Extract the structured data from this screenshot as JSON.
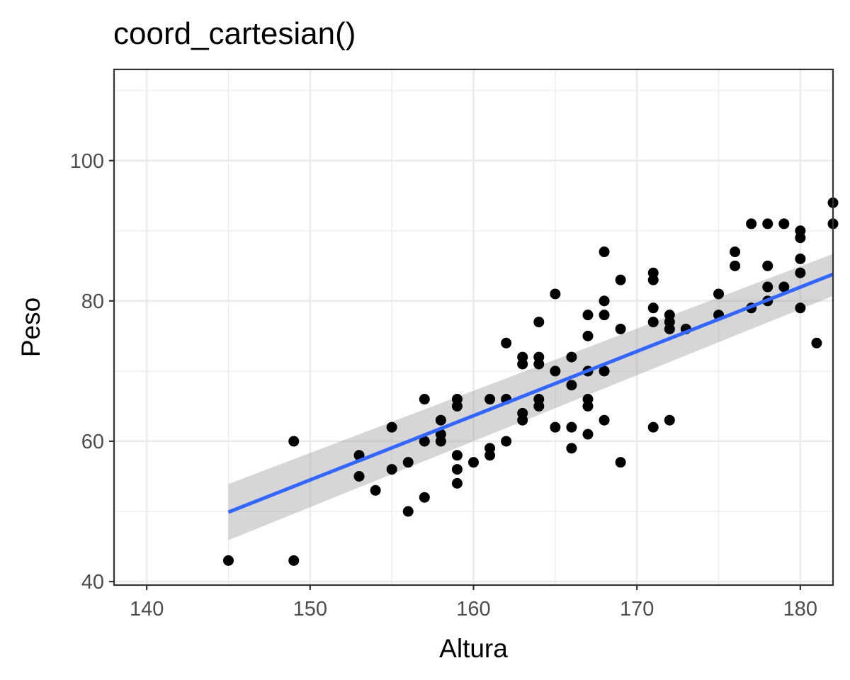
{
  "chart_data": {
    "type": "scatter",
    "title": "coord_cartesian()",
    "xlabel": "Altura",
    "ylabel": "Peso",
    "xlim": [
      138,
      182
    ],
    "ylim": [
      39.5,
      113
    ],
    "x_ticks": [
      140,
      150,
      160,
      170,
      180
    ],
    "y_ticks": [
      40,
      60,
      80,
      100
    ],
    "x_tick_labels": [
      "140",
      "150",
      "160",
      "170",
      "180"
    ],
    "y_tick_labels": [
      "40",
      "60",
      "80",
      "100"
    ],
    "grid": true,
    "legend": "none",
    "colors": {
      "points": "#000000",
      "smooth_line": "#3366ff",
      "confidence_band": "#999999",
      "panel_border": "#333333",
      "grid": "#ebebeb"
    },
    "points": [
      [
        145,
        43
      ],
      [
        149,
        43
      ],
      [
        149,
        60
      ],
      [
        153,
        58
      ],
      [
        153,
        55
      ],
      [
        154,
        53
      ],
      [
        155,
        62
      ],
      [
        155,
        56
      ],
      [
        156,
        57
      ],
      [
        156,
        50
      ],
      [
        157,
        66
      ],
      [
        157,
        60
      ],
      [
        157,
        52
      ],
      [
        158,
        63
      ],
      [
        158,
        61
      ],
      [
        158,
        60
      ],
      [
        159,
        66
      ],
      [
        159,
        65
      ],
      [
        159,
        58
      ],
      [
        159,
        56
      ],
      [
        159,
        54
      ],
      [
        160,
        57
      ],
      [
        161,
        66
      ],
      [
        161,
        59
      ],
      [
        161,
        58
      ],
      [
        162,
        74
      ],
      [
        162,
        66
      ],
      [
        162,
        60
      ],
      [
        163,
        72
      ],
      [
        163,
        71
      ],
      [
        163,
        64
      ],
      [
        163,
        63
      ],
      [
        164,
        77
      ],
      [
        164,
        72
      ],
      [
        164,
        71
      ],
      [
        164,
        66
      ],
      [
        164,
        65
      ],
      [
        165,
        81
      ],
      [
        165,
        70
      ],
      [
        165,
        62
      ],
      [
        166,
        72
      ],
      [
        166,
        68
      ],
      [
        166,
        62
      ],
      [
        166,
        59
      ],
      [
        167,
        78
      ],
      [
        167,
        75
      ],
      [
        167,
        70
      ],
      [
        167,
        66
      ],
      [
        167,
        65
      ],
      [
        167,
        61
      ],
      [
        168,
        87
      ],
      [
        168,
        80
      ],
      [
        168,
        78
      ],
      [
        168,
        70
      ],
      [
        168,
        63
      ],
      [
        169,
        83
      ],
      [
        169,
        76
      ],
      [
        169,
        57
      ],
      [
        171,
        84
      ],
      [
        171,
        83
      ],
      [
        171,
        79
      ],
      [
        171,
        77
      ],
      [
        171,
        62
      ],
      [
        172,
        78
      ],
      [
        172,
        77
      ],
      [
        172,
        76
      ],
      [
        172,
        63
      ],
      [
        173,
        76
      ],
      [
        175,
        81
      ],
      [
        175,
        78
      ],
      [
        176,
        87
      ],
      [
        176,
        85
      ],
      [
        177,
        91
      ],
      [
        177,
        79
      ],
      [
        178,
        91
      ],
      [
        178,
        85
      ],
      [
        178,
        82
      ],
      [
        178,
        80
      ],
      [
        179,
        91
      ],
      [
        179,
        82
      ],
      [
        180,
        90
      ],
      [
        180,
        89
      ],
      [
        180,
        86
      ],
      [
        180,
        84
      ],
      [
        180,
        79
      ],
      [
        181,
        74
      ],
      [
        182,
        94
      ],
      [
        182,
        91
      ]
    ],
    "smooth": {
      "method": "lm",
      "x": [
        145,
        182
      ],
      "y": [
        49.9,
        83.8
      ],
      "band_lower": [
        45.9,
        80.7
      ],
      "band_upper": [
        53.9,
        86.7
      ]
    }
  }
}
